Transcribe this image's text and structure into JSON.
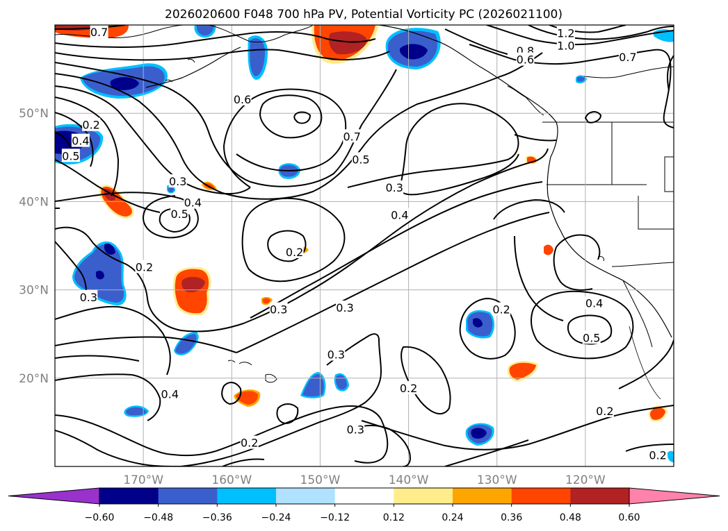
{
  "title": "2026020600 F048 700 hPa PV, Potential Vorticity PC (2026021100)",
  "map": {
    "projection": "PlateCarree",
    "lon_range": [
      -180,
      -110
    ],
    "lat_range": [
      10,
      60
    ],
    "gridlines": true,
    "lon_ticks": [
      {
        "lon": -170,
        "label": "170°W"
      },
      {
        "lon": -160,
        "label": "160°W"
      },
      {
        "lon": -150,
        "label": "150°W"
      },
      {
        "lon": -140,
        "label": "140°W"
      },
      {
        "lon": -130,
        "label": "130°W"
      },
      {
        "lon": -120,
        "label": "120°W"
      }
    ],
    "lat_ticks": [
      {
        "lat": 50,
        "label": "50°N"
      },
      {
        "lat": 40,
        "label": "40°N"
      },
      {
        "lat": 30,
        "label": "30°N"
      },
      {
        "lat": 20,
        "label": "20°N"
      }
    ],
    "contour_labels": [
      {
        "text": "0.7",
        "lon": -175,
        "lat": 59.2
      },
      {
        "text": "1.2",
        "lon": -122.2,
        "lat": 59.1
      },
      {
        "text": "1.0",
        "lon": -122.2,
        "lat": 57.7
      },
      {
        "text": "0.8",
        "lon": -126.8,
        "lat": 57.1
      },
      {
        "text": "0.6",
        "lon": -126.8,
        "lat": 56.1
      },
      {
        "text": "0.7",
        "lon": -115.2,
        "lat": 56.4
      },
      {
        "text": "0.6",
        "lon": -158.8,
        "lat": 51.6
      },
      {
        "text": "0.7",
        "lon": -146.4,
        "lat": 47.4
      },
      {
        "text": "0.5",
        "lon": -145.4,
        "lat": 44.8
      },
      {
        "text": "0.3",
        "lon": -141.6,
        "lat": 41.6
      },
      {
        "text": "0.2",
        "lon": -175.9,
        "lat": 48.7
      },
      {
        "text": "0.4",
        "lon": -177.1,
        "lat": 46.9
      },
      {
        "text": "0.5",
        "lon": -178.2,
        "lat": 45.2
      },
      {
        "text": "0.3",
        "lon": -166.1,
        "lat": 42.3
      },
      {
        "text": "0.4",
        "lon": -164.4,
        "lat": 39.9
      },
      {
        "text": "0.5",
        "lon": -165.9,
        "lat": 38.6
      },
      {
        "text": "0.4",
        "lon": -141.0,
        "lat": 38.5
      },
      {
        "text": "0.2",
        "lon": -152.9,
        "lat": 34.3
      },
      {
        "text": "0.2",
        "lon": -169.9,
        "lat": 32.6
      },
      {
        "text": "0.3",
        "lon": -176.2,
        "lat": 29.2
      },
      {
        "text": "0.3",
        "lon": -154.7,
        "lat": 27.8
      },
      {
        "text": "0.3",
        "lon": -147.2,
        "lat": 28.0
      },
      {
        "text": "0.2",
        "lon": -129.5,
        "lat": 27.8
      },
      {
        "text": "0.4",
        "lon": -119.0,
        "lat": 28.5
      },
      {
        "text": "0.5",
        "lon": -119.3,
        "lat": 24.6
      },
      {
        "text": "0.3",
        "lon": -148.2,
        "lat": 22.7
      },
      {
        "text": "0.2",
        "lon": -140.0,
        "lat": 18.9
      },
      {
        "text": "0.4",
        "lon": -167.0,
        "lat": 18.2
      },
      {
        "text": "0.3",
        "lon": -146.0,
        "lat": 14.2
      },
      {
        "text": "0.2",
        "lon": -117.8,
        "lat": 16.3
      },
      {
        "text": "0.2",
        "lon": -158.0,
        "lat": 12.7
      },
      {
        "text": "0.2",
        "lon": -111.8,
        "lat": 11.3
      }
    ]
  },
  "colorbar": {
    "ticks": [
      "−0.60",
      "−0.48",
      "−0.36",
      "−0.24",
      "−0.12",
      "0.12",
      "0.24",
      "0.36",
      "0.48",
      "0.60"
    ],
    "colors": [
      "#9932cc",
      "#00008b",
      "#3a5fcd",
      "#00bfff",
      "#b0e2ff",
      "#ffffff",
      "#ffec8b",
      "#ffa500",
      "#ff4500",
      "#b22222",
      "#ff82ab"
    ],
    "extend": "both"
  }
}
